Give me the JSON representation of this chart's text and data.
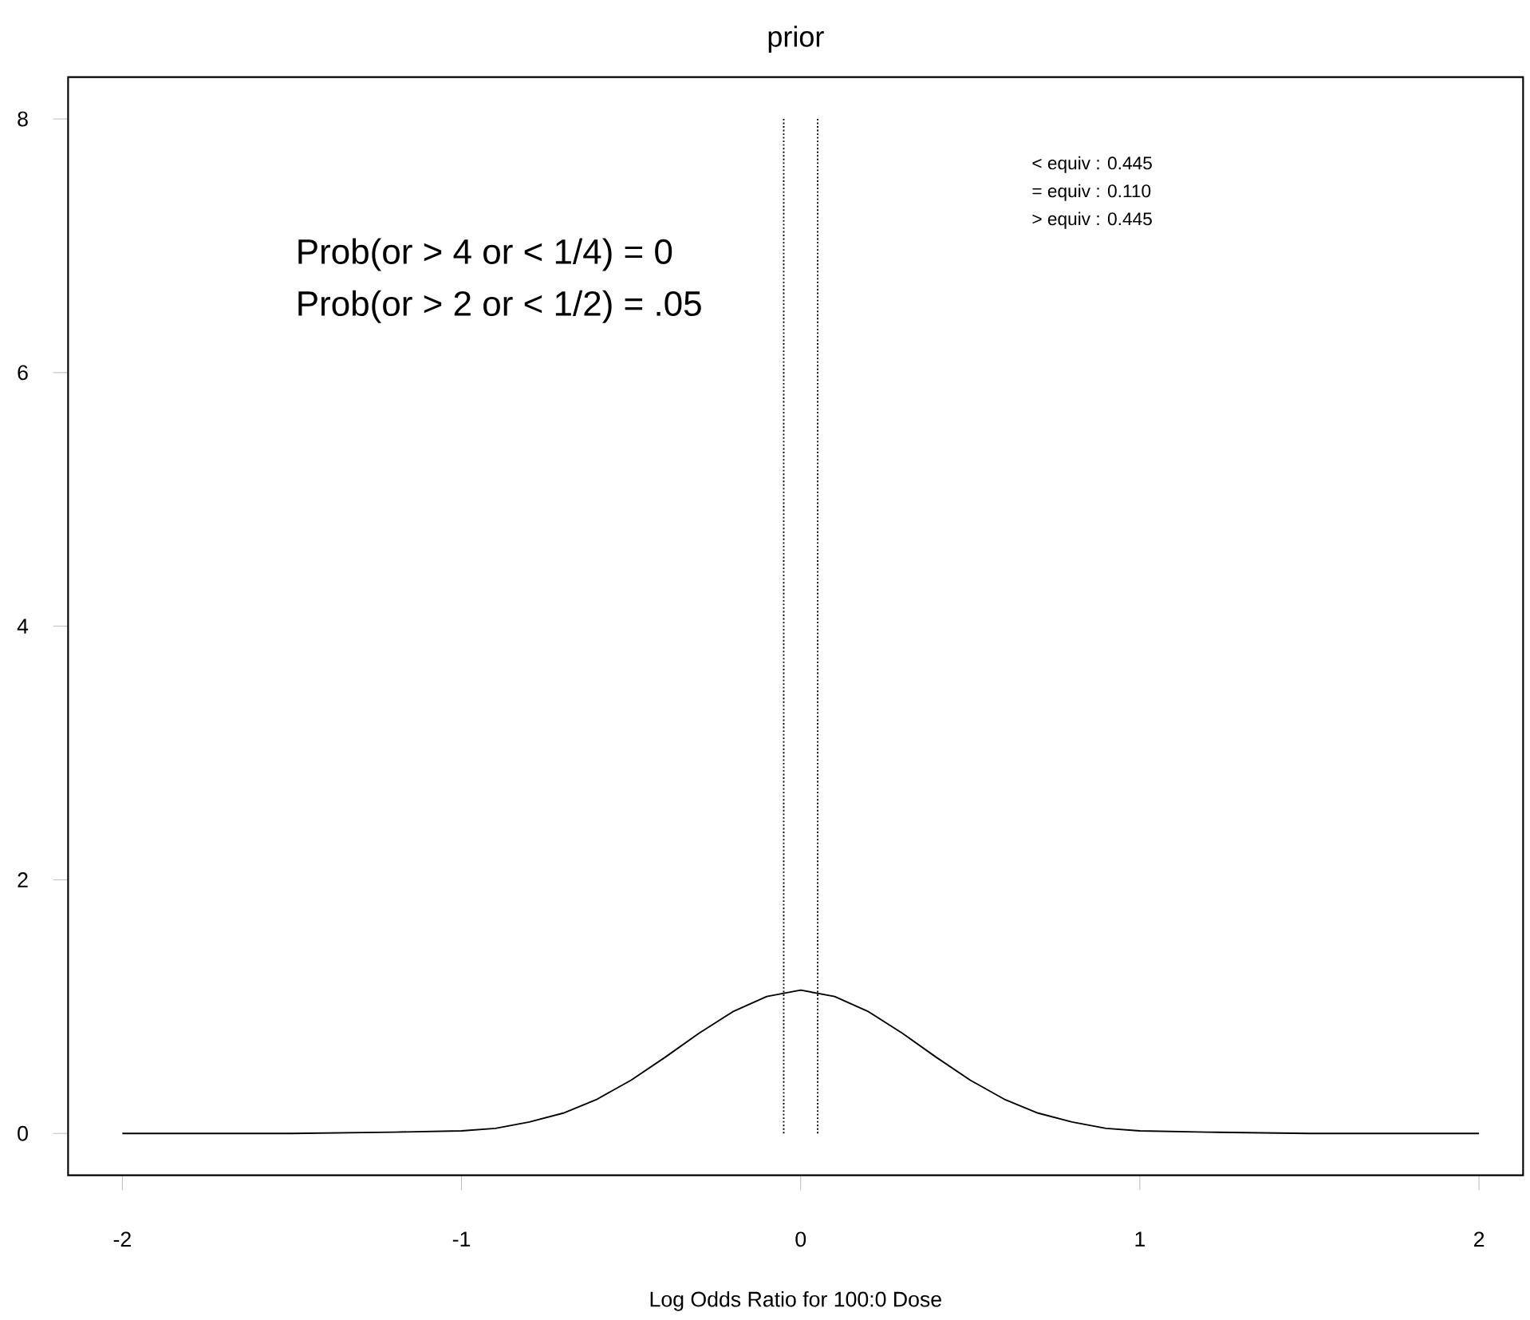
{
  "chart_data": {
    "type": "line",
    "title": "prior",
    "xlabel": "Log Odds Ratio for 100:0 Dose",
    "xlim": [
      -2.16,
      2.13
    ],
    "ylim": [
      -0.33,
      8.33
    ],
    "xticks": [
      -2,
      -1,
      0,
      1,
      2
    ],
    "yticks": [
      0,
      2,
      4,
      6,
      8
    ],
    "marker": "none",
    "series": [
      {
        "color": "#000000",
        "line_style": "solid",
        "x": [
          -2,
          -1.5,
          -1.2,
          -1,
          -0.9,
          -0.8,
          -0.7,
          -0.6,
          -0.5,
          -0.4,
          -0.3,
          -0.2,
          -0.1,
          0,
          0.1,
          0.2,
          0.3,
          0.4,
          0.5,
          0.6,
          0.7,
          0.8,
          0.9,
          1,
          1.2,
          1.5,
          2
        ],
        "values": [
          0,
          0,
          0.01,
          0.02,
          0.04,
          0.09,
          0.16,
          0.27,
          0.42,
          0.6,
          0.79,
          0.96,
          1.08,
          1.13,
          1.08,
          0.96,
          0.79,
          0.6,
          0.42,
          0.27,
          0.16,
          0.09,
          0.04,
          0.02,
          0.01,
          0,
          0
        ]
      },
      {
        "color": "#000000",
        "line_style": "dotted",
        "x": [
          -0.05,
          -0.05
        ],
        "values": [
          0,
          8
        ]
      },
      {
        "color": "#000000",
        "line_style": "dotted",
        "x": [
          0.05,
          0.05
        ],
        "values": [
          0,
          8
        ]
      }
    ],
    "annotations": [
      "Prob(or > 4 or < 1/4) = 0",
      "Prob(or > 2 or < 1/2) = .05",
      "< equiv :  0.445",
      "= equiv :  0.110",
      "> equiv :  0.445"
    ]
  }
}
